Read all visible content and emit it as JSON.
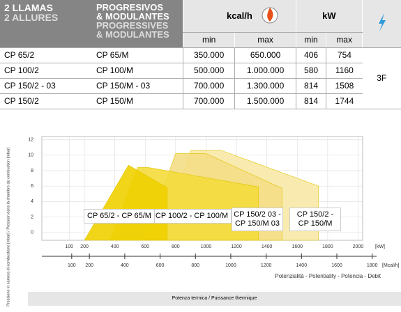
{
  "table": {
    "head1": [
      "2 LLAMAS",
      "2 ALLURES"
    ],
    "head2": [
      "PROGRESIVOS",
      "& MODULANTES",
      "PROGRESSIVES",
      "& MODULANTES"
    ],
    "units": [
      "kcal/h",
      "kW"
    ],
    "subheads": [
      "min",
      "max",
      "min",
      "max"
    ],
    "rows": [
      [
        "CP 65/2",
        "CP 65/M",
        "350.000",
        "650.000",
        "406",
        "754"
      ],
      [
        "CP 100/2",
        "CP 100/M",
        "500.000",
        "1.000.000",
        "580",
        "1160"
      ],
      [
        "CP 150/2 - 03",
        "CP 150/M - 03",
        "700.000",
        "1.300.000",
        "814",
        "1508"
      ],
      [
        "CP 150/2",
        "CP 150/M",
        "700.000",
        "1.500.000",
        "814",
        "1744"
      ]
    ],
    "phase": "3F"
  },
  "chart_data": {
    "type": "area",
    "ylabel": "Pressione in camera di combustione [mbar] / Pression dans la chambre de combustion [mbar]",
    "xlabel": "Potenzialità - Potentiality - Potencia - Debit",
    "xunit": "[kW]",
    "x2unit": "[Mcal/h]",
    "xlim": [
      -80,
      2030
    ],
    "xticks": [
      100,
      200,
      400,
      600,
      800,
      1000,
      1200,
      1400,
      1600,
      1800,
      2000
    ],
    "x2lim": [
      -69,
      1746
    ],
    "x2ticks": [
      100,
      200,
      400,
      600,
      800,
      1000,
      1200,
      1400,
      1600,
      1800
    ],
    "ylim": [
      -1,
      12.4
    ],
    "yticks": [
      0,
      2,
      4,
      6,
      8,
      10,
      12
    ],
    "grid": true,
    "series": [
      {
        "name": "CP 150/2 - CP 150/M",
        "color": "#f8e9a6",
        "x": [
          700,
          900,
          1100,
          1740,
          1740
        ],
        "values": [
          -1,
          10.6,
          10.6,
          6,
          -1
        ]
      },
      {
        "name": "CP 150/2 03 - CP 150/M 03",
        "color": "#f4de86",
        "x": [
          600,
          800,
          1000,
          1500,
          1500
        ],
        "values": [
          -1,
          10.2,
          10.2,
          5.7,
          -1
        ]
      },
      {
        "name": "CP 100/2 - CP 100/M",
        "color": "#f4dc3c",
        "x": [
          370,
          550,
          620,
          1345,
          1345
        ],
        "values": [
          -1,
          8.4,
          8.4,
          5.9,
          -1
        ]
      },
      {
        "name": "CP 65/2 - CP 65/M",
        "color": "#f0d000",
        "x": [
          200,
          490,
          745,
          745
        ],
        "values": [
          -1,
          8.7,
          5.8,
          -1
        ]
      }
    ]
  },
  "footer": "Potenza termica / Puissance thermique"
}
